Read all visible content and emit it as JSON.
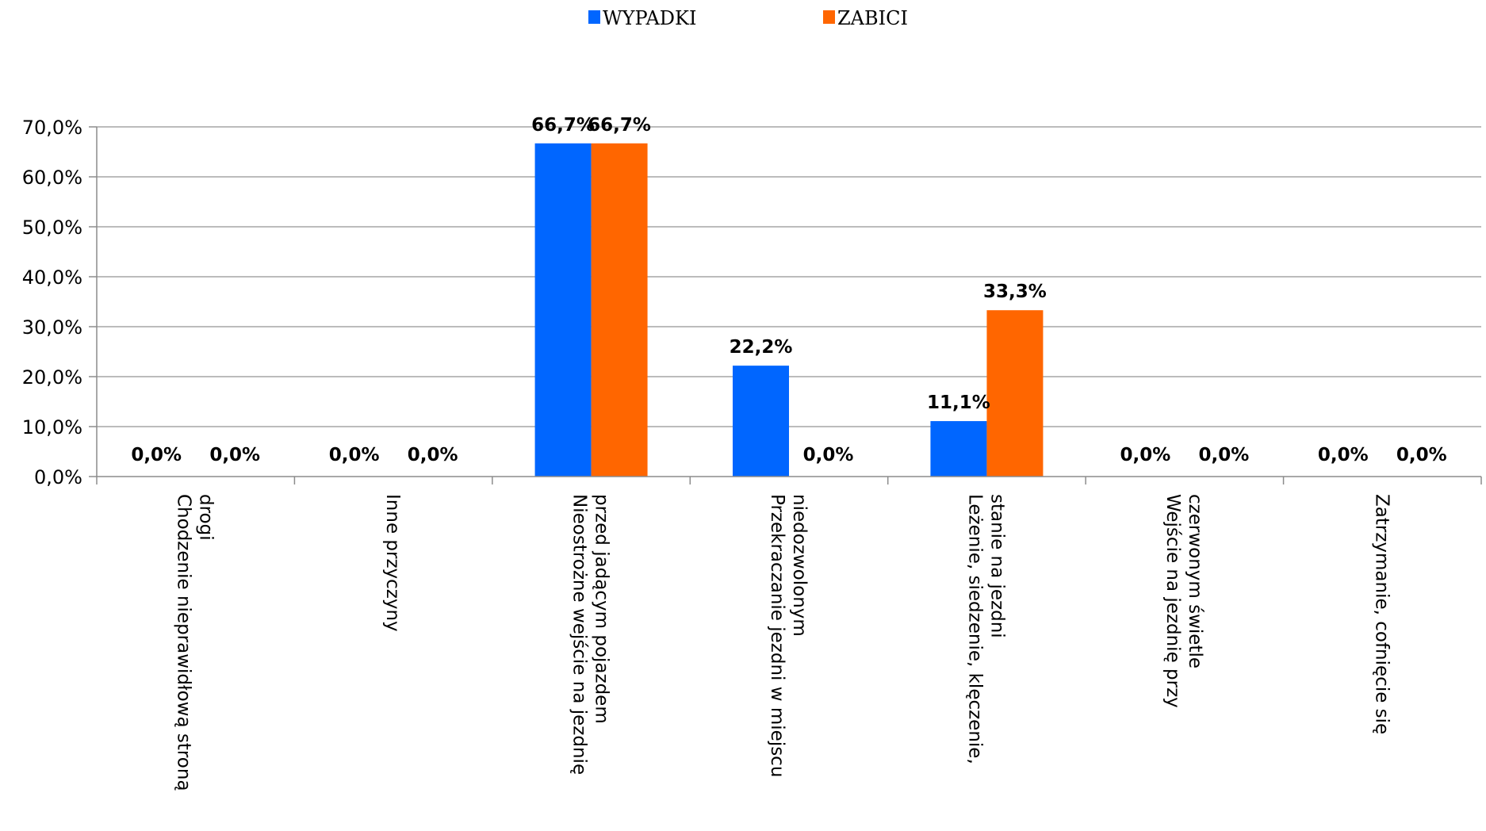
{
  "chart_data": {
    "type": "bar",
    "categories": [
      [
        "Chodzenie nieprawidłową stroną",
        "drogi"
      ],
      [
        "Inne przyczyny"
      ],
      [
        "Nieostrożne wejście na jezdnię",
        "przed jadącym pojazdem"
      ],
      [
        "Przekraczanie jezdni w miejscu",
        "niedozwolonym"
      ],
      [
        "Leżenie, siedzenie, klęczenie,",
        "stanie na jezdni"
      ],
      [
        "Wejście na jezdnię przy",
        "czerwonym świetle"
      ],
      [
        "Zatrzymanie, cofnięcie się"
      ]
    ],
    "series": [
      {
        "name": "WYPADKI",
        "color": "#0066FF",
        "values": [
          0.0,
          0.0,
          66.7,
          22.2,
          11.1,
          0.0,
          0.0
        ],
        "labels": [
          "0,0%",
          "0,0%",
          "66,7%",
          "22,2%",
          "11,1%",
          "0,0%",
          "0,0%"
        ]
      },
      {
        "name": "ZABICI",
        "color": "#FF6600",
        "values": [
          0.0,
          0.0,
          66.7,
          0.0,
          33.3,
          0.0,
          0.0
        ],
        "labels": [
          "0,0%",
          "0,0%",
          "66,7%",
          "0,0%",
          "33,3%",
          "0,0%",
          "0,0%"
        ]
      }
    ],
    "yticks": [
      "0,0%",
      "10,0%",
      "20,0%",
      "30,0%",
      "40,0%",
      "50,0%",
      "60,0%",
      "70,0%"
    ],
    "ylim": [
      0,
      70
    ],
    "grid": true,
    "legend": "top-center",
    "title": "",
    "xlabel": "",
    "ylabel": ""
  }
}
